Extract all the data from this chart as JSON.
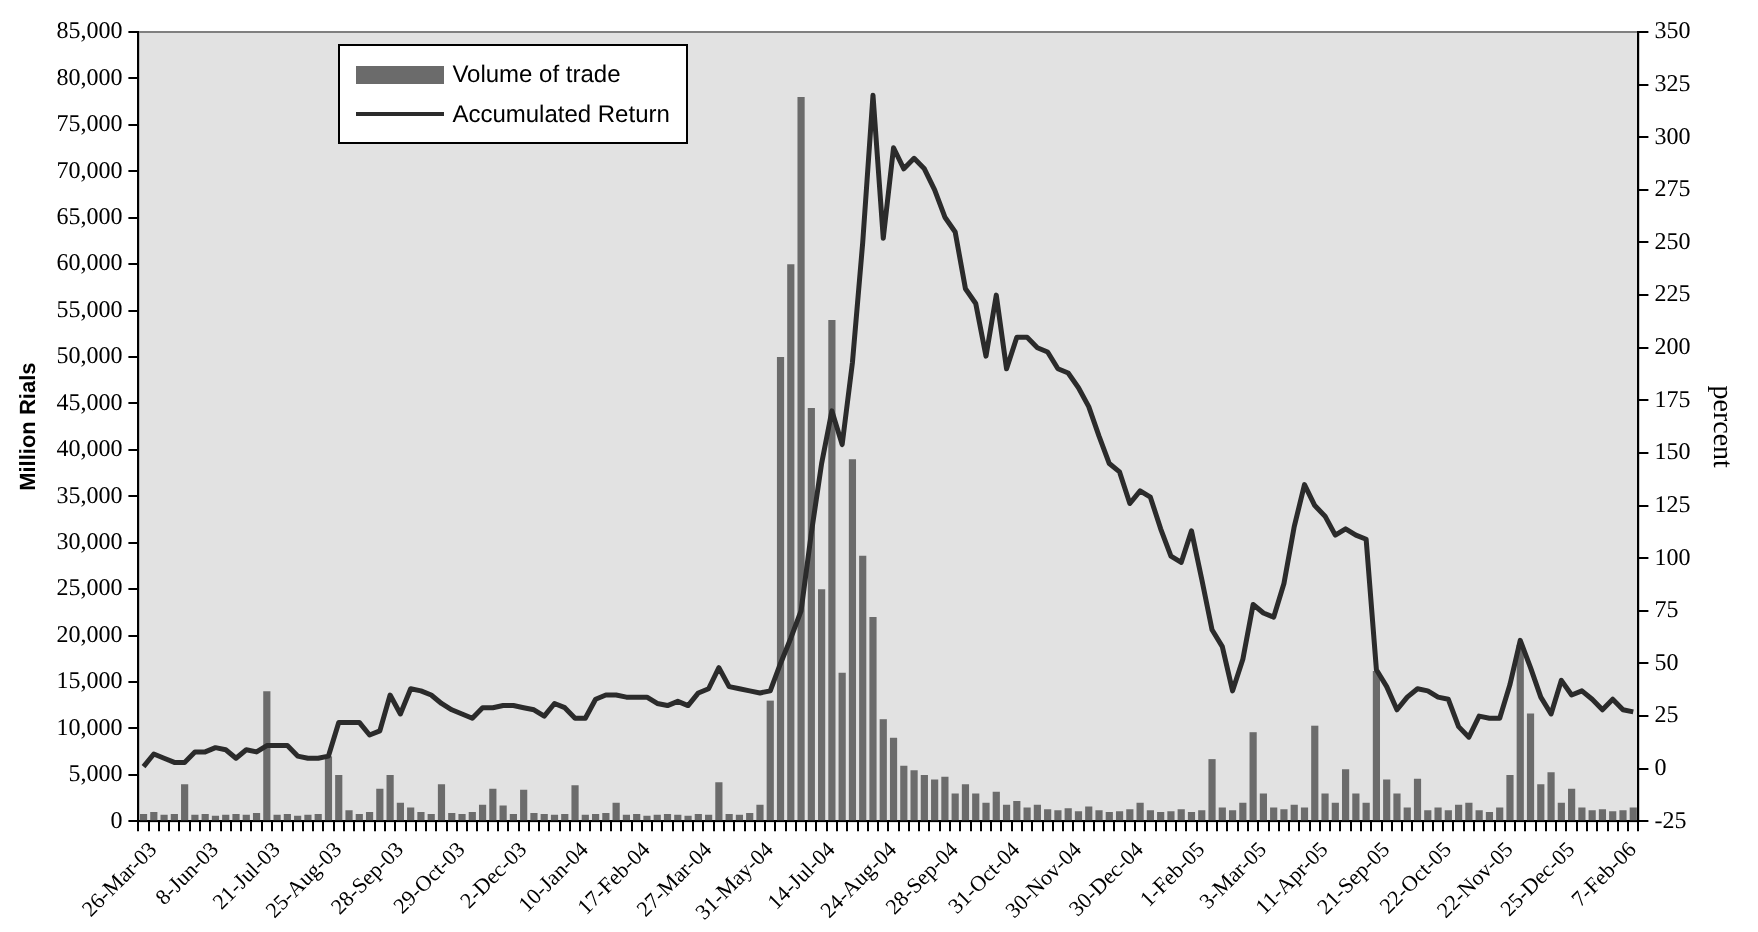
{
  "chart_data": {
    "type": "bar",
    "categories": [
      null,
      "26-Mar-03",
      null,
      null,
      null,
      null,
      null,
      "8-Jun-03",
      null,
      null,
      null,
      null,
      null,
      "21-Jul-03",
      null,
      null,
      null,
      null,
      null,
      "25-Aug-03",
      null,
      null,
      null,
      null,
      null,
      "28-Sep-03",
      null,
      null,
      null,
      null,
      null,
      "29-Oct-03",
      null,
      null,
      null,
      null,
      null,
      "2-Dec-03",
      null,
      null,
      null,
      null,
      null,
      "10-Jan-04",
      null,
      null,
      null,
      null,
      null,
      "17-Feb-04",
      null,
      null,
      null,
      null,
      null,
      "27-Mar-04",
      null,
      null,
      null,
      null,
      null,
      "31-May-04",
      null,
      null,
      null,
      null,
      null,
      "14-Jul-04",
      null,
      null,
      null,
      null,
      null,
      "24-Aug-04",
      null,
      null,
      null,
      null,
      null,
      "28-Sep-04",
      null,
      null,
      null,
      null,
      null,
      "31-Oct-04",
      null,
      null,
      null,
      null,
      null,
      "30-Nov-04",
      null,
      null,
      null,
      null,
      null,
      "30-Dec-04",
      null,
      null,
      null,
      null,
      null,
      "1-Feb-05",
      null,
      null,
      null,
      null,
      null,
      "3-Mar-05",
      null,
      null,
      null,
      null,
      null,
      "11-Apr-05",
      null,
      null,
      null,
      null,
      null,
      "21-Sep-05",
      null,
      null,
      null,
      null,
      null,
      "22-Oct-05",
      null,
      null,
      null,
      null,
      null,
      "22-Nov-05",
      null,
      null,
      null,
      null,
      null,
      "25-Dec-05",
      null,
      null,
      null,
      null,
      null,
      "7-Feb-06"
    ],
    "series": [
      {
        "name": "Volume of trade",
        "color": "#6b6b6b",
        "values": [
          800,
          1000,
          700,
          800,
          4000,
          700,
          800,
          600,
          700,
          800,
          700,
          900,
          14000,
          700,
          800,
          600,
          700,
          800,
          7000,
          5000,
          1200,
          800,
          1000,
          3500,
          5000,
          2000,
          1500,
          1000,
          800,
          4000,
          900,
          800,
          1000,
          1800,
          3500,
          1700,
          800,
          3400,
          900,
          800,
          700,
          800,
          3900,
          700,
          800,
          900,
          2000,
          700,
          800,
          600,
          700,
          800,
          700,
          600,
          800,
          700,
          4200,
          800,
          700,
          900,
          1800,
          13000,
          50000,
          60000,
          78000,
          44500,
          25000,
          54000,
          16000,
          39000,
          28600,
          22000,
          11000,
          9000,
          6000,
          5500,
          5000,
          4500,
          4800,
          3000,
          4000,
          3000,
          2000,
          3200,
          1800,
          2200,
          1500,
          1800,
          1300,
          1200,
          1400,
          1100,
          1600,
          1200,
          1000,
          1100,
          1300,
          2000,
          1200,
          1000,
          1100,
          1300,
          1000,
          1200,
          6700,
          1500,
          1200,
          2000,
          9600,
          3000,
          1500,
          1300,
          1800,
          1500,
          10300,
          3000,
          2000,
          5600,
          3000,
          2000,
          16200,
          4500,
          3000,
          1500,
          4600,
          1200,
          1500,
          1200,
          1800,
          2000,
          1200,
          1000,
          1500,
          5000,
          19000,
          11600,
          4000,
          5300,
          2000,
          3500,
          1500,
          1200,
          1300,
          1100,
          1200,
          1500
        ]
      },
      {
        "name": "Accumulated Return",
        "type": "line",
        "axis": "y2",
        "color": "#2b2b2b",
        "values": [
          1,
          7,
          5,
          3,
          3,
          8,
          8,
          10,
          9,
          5,
          9,
          8,
          11,
          11,
          11,
          6,
          5,
          5,
          6,
          22,
          22,
          22,
          16,
          18,
          35,
          26,
          38,
          37,
          35,
          31,
          28,
          26,
          24,
          29,
          29,
          30,
          30,
          29,
          28,
          25,
          31,
          29,
          24,
          24,
          33,
          35,
          35,
          34,
          34,
          34,
          31,
          30,
          32,
          30,
          36,
          38,
          48,
          39,
          38,
          37,
          36,
          37,
          50,
          62,
          75,
          112,
          145,
          170,
          154,
          193,
          250,
          320,
          252,
          295,
          285,
          290,
          285,
          275,
          262,
          255,
          228,
          221,
          196,
          225,
          190,
          205,
          205,
          200,
          198,
          190,
          188,
          181,
          172,
          158,
          145,
          141,
          126,
          132,
          129,
          114,
          101,
          98,
          113,
          90,
          66,
          58,
          37,
          52,
          78,
          74,
          72,
          88,
          115,
          135,
          125,
          120,
          111,
          114,
          111,
          109,
          47,
          39,
          28,
          34,
          38,
          37,
          34,
          33,
          20,
          15,
          25,
          24,
          24,
          40,
          61,
          48,
          34,
          26,
          42,
          35,
          37,
          33,
          28,
          33,
          28,
          27
        ]
      }
    ],
    "ylabel": "Million Rials",
    "y2label": "percent",
    "ylim": [
      0,
      85000
    ],
    "yticks": [
      0,
      {
        "value": 5000,
        "label": "5,000"
      },
      {
        "value": 10000,
        "label": "10,000"
      },
      {
        "value": 15000,
        "label": "15,000"
      },
      {
        "value": 20000,
        "label": "20,000"
      },
      {
        "value": 25000,
        "label": "25,000"
      },
      {
        "value": 30000,
        "label": "30,000"
      },
      {
        "value": 35000,
        "label": "35,000"
      },
      {
        "value": 40000,
        "label": "40,000"
      },
      {
        "value": 45000,
        "label": "45,000"
      },
      {
        "value": 50000,
        "label": "50,000"
      },
      {
        "value": 55000,
        "label": "55,000"
      },
      {
        "value": 60000,
        "label": "60,000"
      },
      {
        "value": 65000,
        "label": "65,000"
      },
      {
        "value": 70000,
        "label": "70,000"
      },
      {
        "value": 75000,
        "label": "75,000"
      },
      {
        "value": 80000,
        "label": "80,000"
      },
      {
        "value": 85000,
        "label": "85,000"
      }
    ],
    "y2lim": [
      -25,
      350
    ],
    "y2ticks": [
      -25,
      0,
      25,
      50,
      75,
      100,
      125,
      150,
      175,
      200,
      225,
      250,
      275,
      300,
      325,
      350
    ],
    "grid": false,
    "legend": "top left"
  }
}
